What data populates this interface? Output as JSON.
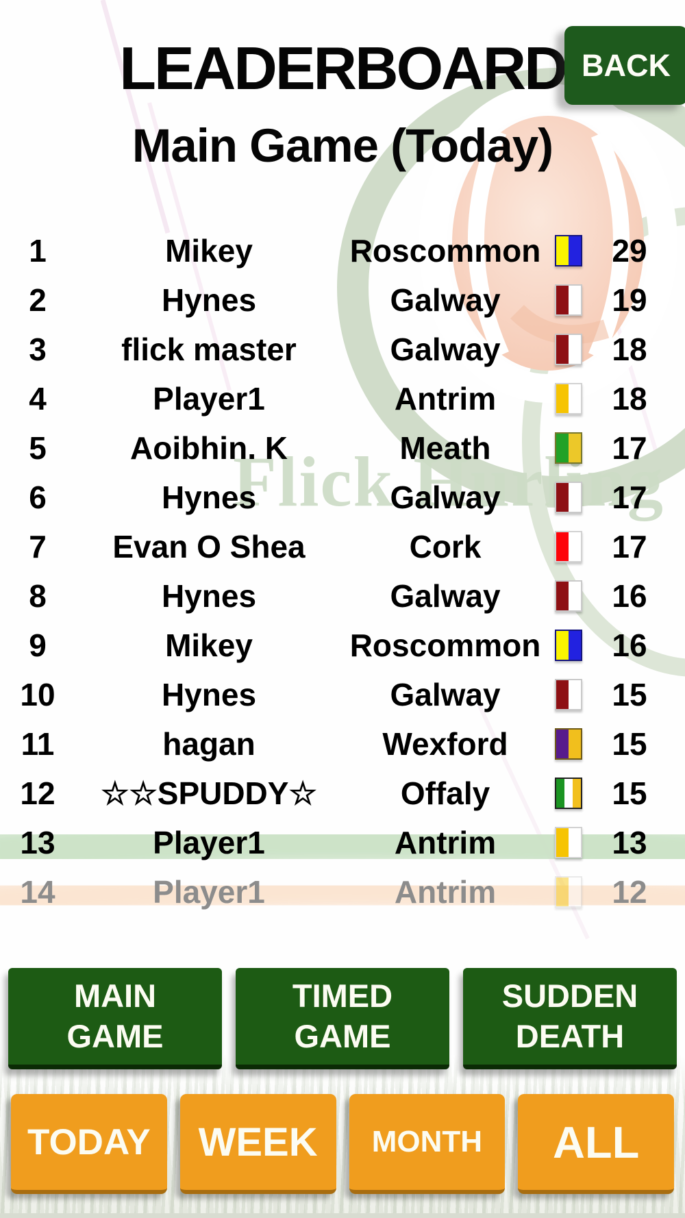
{
  "header": {
    "title": "LEADERBOARD",
    "back_label": "BACK",
    "subtitle": "Main Game (Today)"
  },
  "watermark": {
    "text": "Flick Hurling"
  },
  "leaderboard": {
    "rows": [
      {
        "rank": "1",
        "name": "Mikey",
        "county": "Roscommon",
        "score": "29",
        "flag": {
          "colors": [
            "#fbf400",
            "#2222e0"
          ],
          "border": "#15157e"
        }
      },
      {
        "rank": "2",
        "name": "Hynes",
        "county": "Galway",
        "score": "19",
        "flag": {
          "colors": [
            "#8e1014",
            "#ffffff"
          ],
          "border": "#c9c9c9"
        }
      },
      {
        "rank": "3",
        "name": "flick master",
        "county": "Galway",
        "score": "18",
        "flag": {
          "colors": [
            "#8e1014",
            "#ffffff"
          ],
          "border": "#c9c9c9"
        }
      },
      {
        "rank": "4",
        "name": "Player1",
        "county": "Antrim",
        "score": "18",
        "flag": {
          "colors": [
            "#f6c402",
            "#ffffff"
          ],
          "border": "#d2d2d2"
        }
      },
      {
        "rank": "5",
        "name": "Aoibhin. K",
        "county": "Meath",
        "score": "17",
        "flag": {
          "colors": [
            "#21a127",
            "#ecc829"
          ],
          "border": "#77772d"
        }
      },
      {
        "rank": "6",
        "name": "Hynes",
        "county": "Galway",
        "score": "17",
        "flag": {
          "colors": [
            "#8e1014",
            "#ffffff"
          ],
          "border": "#c9c9c9"
        }
      },
      {
        "rank": "7",
        "name": "Evan O Shea",
        "county": "Cork",
        "score": "17",
        "flag": {
          "colors": [
            "#fd0309",
            "#ffffff"
          ],
          "border": "#d2d2d2"
        }
      },
      {
        "rank": "8",
        "name": "Hynes",
        "county": "Galway",
        "score": "16",
        "flag": {
          "colors": [
            "#8e1014",
            "#ffffff"
          ],
          "border": "#c9c9c9"
        }
      },
      {
        "rank": "9",
        "name": "Mikey",
        "county": "Roscommon",
        "score": "16",
        "flag": {
          "colors": [
            "#fbf400",
            "#2222e0"
          ],
          "border": "#15157e"
        }
      },
      {
        "rank": "10",
        "name": "Hynes",
        "county": "Galway",
        "score": "15",
        "flag": {
          "colors": [
            "#8e1014",
            "#ffffff"
          ],
          "border": "#c9c9c9"
        }
      },
      {
        "rank": "11",
        "name": "hagan",
        "county": "Wexford",
        "score": "15",
        "flag": {
          "colors": [
            "#571b8c",
            "#f1bf1d"
          ],
          "border": "#6e5a18"
        }
      },
      {
        "rank": "12",
        "name": "☆☆SPUDDY☆",
        "county": "Offaly",
        "score": "15",
        "flag": {
          "colors": [
            "#1b9422",
            "#ffffff",
            "#f2c01e"
          ],
          "border": "#222222"
        }
      },
      {
        "rank": "13",
        "name": "Player1",
        "county": "Antrim",
        "score": "13",
        "flag": {
          "colors": [
            "#f6c402",
            "#ffffff"
          ],
          "border": "#d2d2d2"
        }
      },
      {
        "rank": "14",
        "name": "Player1",
        "county": "Antrim",
        "score": "12",
        "muted": true,
        "flag": {
          "colors": [
            "#f6c402",
            "#ffffff"
          ],
          "border": "#d2d2d2"
        }
      }
    ]
  },
  "mode_buttons": [
    {
      "label": "MAIN GAME"
    },
    {
      "label": "TIMED GAME"
    },
    {
      "label": "SUDDEN DEATH"
    }
  ],
  "period_buttons": [
    {
      "label": "TODAY"
    },
    {
      "label": "WEEK"
    },
    {
      "label": "MONTH"
    },
    {
      "label": "ALL"
    }
  ],
  "colors": {
    "brand_green": "#1d5b14",
    "brand_orange": "#f09d1e",
    "watermark_green": "#cddcc6",
    "watermark_peach": "#f7d2c0"
  }
}
